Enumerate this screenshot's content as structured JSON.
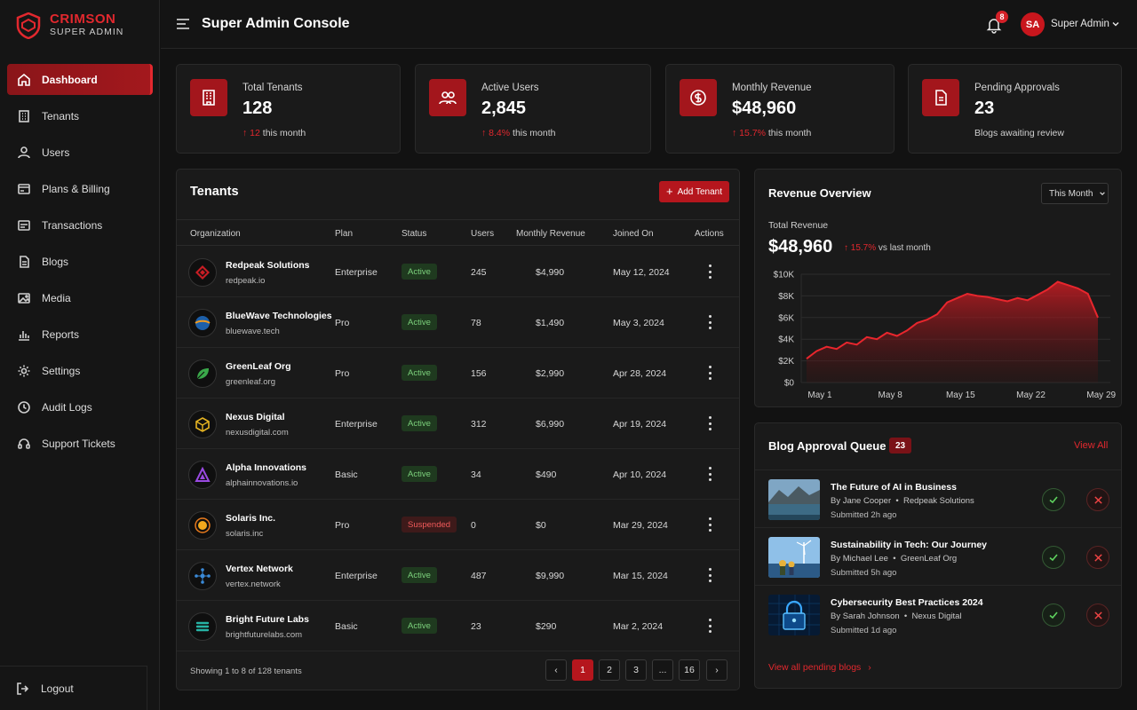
{
  "brand": {
    "name": "CRIMSON",
    "tagline": "SUPER ADMIN"
  },
  "colors": {
    "accent": "#e2282e",
    "active_badge": "#7cd17c",
    "suspended_badge": "#f05a5a"
  },
  "sidebar": {
    "items": [
      {
        "label": "Dashboard",
        "icon": "home-icon",
        "active": true
      },
      {
        "label": "Tenants",
        "icon": "building-icon"
      },
      {
        "label": "Users",
        "icon": "user-icon"
      },
      {
        "label": "Plans & Billing",
        "icon": "card-icon"
      },
      {
        "label": "Transactions",
        "icon": "receipt-icon"
      },
      {
        "label": "Blogs",
        "icon": "document-icon"
      },
      {
        "label": "Media",
        "icon": "image-icon"
      },
      {
        "label": "Reports",
        "icon": "bar-chart-icon"
      },
      {
        "label": "Settings",
        "icon": "gear-icon"
      },
      {
        "label": "Audit Logs",
        "icon": "clock-icon"
      },
      {
        "label": "Support Tickets",
        "icon": "headset-icon"
      }
    ],
    "logout": "Logout"
  },
  "header": {
    "title": "Super Admin Console",
    "notifications": "8",
    "avatar": "SA",
    "user": "Super Admin"
  },
  "stats": [
    {
      "label": "Total Tenants",
      "value": "128",
      "change": "12",
      "suffix": " this month",
      "icon": "building-icon"
    },
    {
      "label": "Active Users",
      "value": "2,845",
      "change": "8.4%",
      "suffix": " this month",
      "icon": "users-icon"
    },
    {
      "label": "Monthly Revenue",
      "value": "$48,960",
      "change": "15.7%",
      "suffix": " this month",
      "icon": "dollar-icon"
    },
    {
      "label": "Pending Approvals",
      "value": "23",
      "change": "",
      "suffix": "Blogs awaiting review",
      "icon": "document-icon"
    }
  ],
  "tenants": {
    "title": "Tenants",
    "add_label": "Add Tenant",
    "columns": [
      "Organization",
      "Plan",
      "Status",
      "Users",
      "Monthly Revenue",
      "Joined On",
      "Actions"
    ],
    "rows": [
      {
        "name": "Redpeak Solutions",
        "domain": "redpeak.io",
        "plan": "Enterprise",
        "status": "Active",
        "users": "245",
        "revenue": "$4,990",
        "joined": "May 12, 2024",
        "logo": "redpeak-logo-icon"
      },
      {
        "name": "BlueWave Technologies",
        "domain": "bluewave.tech",
        "plan": "Pro",
        "status": "Active",
        "users": "78",
        "revenue": "$1,490",
        "joined": "May 3, 2024",
        "logo": "bluewave-logo-icon"
      },
      {
        "name": "GreenLeaf Org",
        "domain": "greenleaf.org",
        "plan": "Pro",
        "status": "Active",
        "users": "156",
        "revenue": "$2,990",
        "joined": "Apr 28, 2024",
        "logo": "leaf-logo-icon"
      },
      {
        "name": "Nexus Digital",
        "domain": "nexusdigital.com",
        "plan": "Enterprise",
        "status": "Active",
        "users": "312",
        "revenue": "$6,990",
        "joined": "Apr 19, 2024",
        "logo": "cube-logo-icon"
      },
      {
        "name": "Alpha Innovations",
        "domain": "alphainnovations.io",
        "plan": "Basic",
        "status": "Active",
        "users": "34",
        "revenue": "$490",
        "joined": "Apr 10, 2024",
        "logo": "triangle-logo-icon"
      },
      {
        "name": "Solaris Inc.",
        "domain": "solaris.inc",
        "plan": "Pro",
        "status": "Suspended",
        "users": "0",
        "revenue": "$0",
        "joined": "Mar 29, 2024",
        "logo": "sun-logo-icon"
      },
      {
        "name": "Vertex Network",
        "domain": "vertex.network",
        "plan": "Enterprise",
        "status": "Active",
        "users": "487",
        "revenue": "$9,990",
        "joined": "Mar 15, 2024",
        "logo": "network-logo-icon"
      },
      {
        "name": "Bright Future Labs",
        "domain": "brightfuturelabs.com",
        "plan": "Basic",
        "status": "Active",
        "users": "23",
        "revenue": "$290",
        "joined": "Mar 2, 2024",
        "logo": "stack-logo-icon"
      }
    ],
    "showing": "Showing 1 to 8 of 128 tenants",
    "pages": [
      "1",
      "2",
      "3",
      "...",
      "16"
    ],
    "current_page": "1"
  },
  "revenue": {
    "title": "Revenue Overview",
    "period": "This Month",
    "total_label": "Total Revenue",
    "total": "$48,960",
    "change": "15.7%",
    "change_suffix": " vs last month"
  },
  "chart_data": {
    "type": "area",
    "title": "",
    "xlabel": "",
    "ylabel": "",
    "ylim": [
      0,
      10000
    ],
    "y_ticks": [
      "$0",
      "$2K",
      "$4K",
      "$6K",
      "$8K",
      "$10K"
    ],
    "x_ticks": [
      "May 1",
      "May 8",
      "May 15",
      "May 22",
      "May 29"
    ],
    "grid": true,
    "x": [
      1,
      2,
      3,
      4,
      5,
      6,
      7,
      8,
      9,
      10,
      11,
      12,
      13,
      14,
      15,
      16,
      17,
      18,
      19,
      20,
      21,
      22,
      23,
      24,
      25,
      26,
      27,
      28,
      29,
      30
    ],
    "series": [
      {
        "values": [
          2200,
          2900,
          3300,
          3100,
          3700,
          3500,
          4200,
          4000,
          4600,
          4300,
          4800,
          5500,
          5800,
          6300,
          7400,
          7800,
          8200,
          8000,
          7900,
          7700,
          7500,
          7800,
          7600,
          8100,
          8600,
          9300,
          9000,
          8700,
          8200,
          6000
        ]
      }
    ]
  },
  "blog_queue": {
    "title": "Blog Approval Queue",
    "count": "23",
    "view_all": "View All",
    "items": [
      {
        "title": "The Future of AI in Business",
        "author": "By Jane Cooper",
        "org": "Redpeak Solutions",
        "time": "Submitted 2h ago",
        "thumb": "mountain-lake-thumbnail"
      },
      {
        "title": "Sustainability in Tech: Our Journey",
        "author": "By Michael Lee",
        "org": "GreenLeaf Org",
        "time": "Submitted 5h ago",
        "thumb": "wind-turbine-thumbnail"
      },
      {
        "title": "Cybersecurity Best Practices 2024",
        "author": "By Sarah Johnson",
        "org": "Nexus Digital",
        "time": "Submitted 1d ago",
        "thumb": "padlock-thumbnail"
      }
    ],
    "view_pending": "View all pending blogs"
  }
}
